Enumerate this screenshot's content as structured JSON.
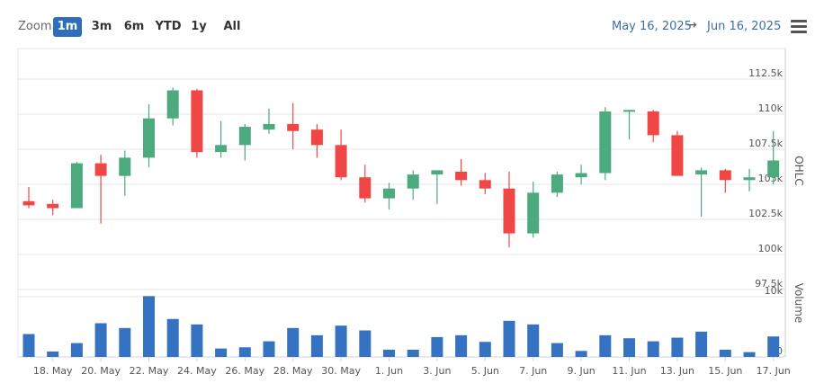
{
  "toolbar": {
    "zoom_label": "Zoom",
    "buttons": [
      "1m",
      "3m",
      "6m",
      "YTD",
      "1y",
      "All"
    ],
    "active": "1m",
    "date_from": "May 16, 2025",
    "arrow": "→",
    "date_to": "Jun 16, 2025"
  },
  "colors": {
    "up": "#4caa7e",
    "down": "#f04646",
    "volume": "#3672c2",
    "active": "#2f6fba"
  },
  "chart_data": {
    "type": "candlestick",
    "x_tick_labels": [
      "18. May",
      "20. May",
      "22. May",
      "24. May",
      "26. May",
      "28. May",
      "30. May",
      "1. Jun",
      "3. Jun",
      "5. Jun",
      "7. Jun",
      "9. Jun",
      "11. Jun",
      "13. Jun",
      "15. Jun",
      "17. Jun"
    ],
    "ohlc_axis": {
      "title": "OHLC",
      "ticks": [
        "97.5k",
        "100k",
        "102.5k",
        "105k",
        "107.5k",
        "110k",
        "112.5k"
      ],
      "range": [
        97500,
        112500
      ]
    },
    "volume_axis": {
      "title": "Volume",
      "ticks": [
        "0",
        "10k"
      ],
      "range": [
        0,
        10000
      ]
    },
    "series": [
      {
        "name": "OHLC",
        "points": [
          {
            "date": "2025-05-17",
            "open": 103800,
            "high": 104800,
            "low": 103300,
            "close": 103500
          },
          {
            "date": "2025-05-18",
            "open": 103600,
            "high": 103900,
            "low": 102800,
            "close": 103300
          },
          {
            "date": "2025-05-19",
            "open": 103300,
            "high": 106600,
            "low": 103300,
            "close": 106500
          },
          {
            "date": "2025-05-20",
            "open": 106500,
            "high": 107100,
            "low": 102200,
            "close": 105600
          },
          {
            "date": "2025-05-21",
            "open": 105600,
            "high": 107400,
            "low": 104200,
            "close": 106900
          },
          {
            "date": "2025-05-22",
            "open": 106900,
            "high": 110700,
            "low": 106200,
            "close": 109700
          },
          {
            "date": "2025-05-23",
            "open": 109700,
            "high": 111900,
            "low": 109200,
            "close": 111700
          },
          {
            "date": "2025-05-24",
            "open": 111700,
            "high": 111800,
            "low": 106900,
            "close": 107300
          },
          {
            "date": "2025-05-25",
            "open": 107300,
            "high": 109500,
            "low": 106900,
            "close": 107800
          },
          {
            "date": "2025-05-26",
            "open": 107800,
            "high": 109300,
            "low": 106700,
            "close": 109100
          },
          {
            "date": "2025-05-27",
            "open": 108900,
            "high": 110400,
            "low": 108600,
            "close": 109300
          },
          {
            "date": "2025-05-28",
            "open": 109300,
            "high": 110800,
            "low": 107500,
            "close": 108800
          },
          {
            "date": "2025-05-29",
            "open": 108900,
            "high": 109300,
            "low": 106900,
            "close": 107800
          },
          {
            "date": "2025-05-30",
            "open": 107800,
            "high": 108900,
            "low": 105300,
            "close": 105500
          },
          {
            "date": "2025-05-31",
            "open": 105500,
            "high": 106400,
            "low": 103700,
            "close": 104000
          },
          {
            "date": "2025-06-01",
            "open": 104000,
            "high": 105100,
            "low": 103200,
            "close": 104700
          },
          {
            "date": "2025-06-02",
            "open": 104700,
            "high": 106000,
            "low": 103900,
            "close": 105700
          },
          {
            "date": "2025-06-03",
            "open": 105700,
            "high": 106000,
            "low": 103600,
            "close": 106000
          },
          {
            "date": "2025-06-04",
            "open": 105900,
            "high": 106800,
            "low": 104900,
            "close": 105300
          },
          {
            "date": "2025-06-05",
            "open": 105300,
            "high": 105800,
            "low": 104300,
            "close": 104700
          },
          {
            "date": "2025-06-06",
            "open": 104700,
            "high": 105900,
            "low": 100500,
            "close": 101500
          },
          {
            "date": "2025-06-07",
            "open": 101500,
            "high": 105200,
            "low": 101200,
            "close": 104400
          },
          {
            "date": "2025-06-08",
            "open": 104400,
            "high": 105900,
            "low": 104100,
            "close": 105700
          },
          {
            "date": "2025-06-09",
            "open": 105500,
            "high": 106400,
            "low": 105000,
            "close": 105800
          },
          {
            "date": "2025-06-10",
            "open": 105800,
            "high": 110500,
            "low": 105300,
            "close": 110200
          },
          {
            "date": "2025-06-11",
            "open": 110200,
            "high": 110300,
            "low": 108200,
            "close": 110300
          },
          {
            "date": "2025-06-12",
            "open": 110200,
            "high": 110300,
            "low": 108000,
            "close": 108500
          },
          {
            "date": "2025-06-13",
            "open": 108500,
            "high": 108800,
            "low": 105700,
            "close": 105600
          },
          {
            "date": "2025-06-14",
            "open": 105700,
            "high": 106200,
            "low": 102700,
            "close": 106000
          },
          {
            "date": "2025-06-15",
            "open": 106000,
            "high": 106100,
            "low": 104400,
            "close": 105300
          },
          {
            "date": "2025-06-16",
            "open": 105300,
            "high": 106100,
            "low": 104500,
            "close": 105500
          },
          {
            "date": "2025-06-17",
            "open": 105500,
            "high": 108800,
            "low": 105000,
            "close": 106700
          }
        ]
      },
      {
        "name": "Volume",
        "values": [
          3800,
          900,
          2300,
          5600,
          4800,
          10100,
          6300,
          5400,
          1400,
          1600,
          2600,
          4800,
          3600,
          5200,
          4400,
          1200,
          1200,
          3300,
          3600,
          2500,
          6000,
          5400,
          2300,
          1000,
          3600,
          3100,
          2600,
          3200,
          4200,
          1200,
          800,
          3400
        ]
      }
    ]
  }
}
